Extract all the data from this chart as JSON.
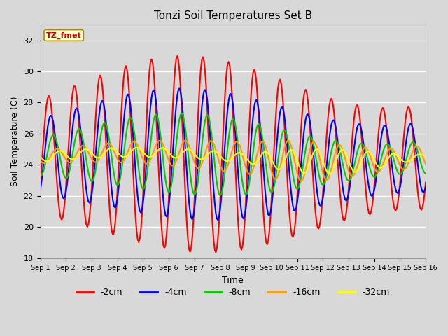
{
  "title": "Tonzi Soil Temperatures Set B",
  "xlabel": "Time",
  "ylabel": "Soil Temperature (C)",
  "ylim": [
    18,
    33
  ],
  "yticks": [
    18,
    20,
    22,
    24,
    26,
    28,
    30,
    32
  ],
  "x_labels": [
    "Sep 1",
    "Sep 2",
    "Sep 3",
    "Sep 4",
    "Sep 5",
    "Sep 6",
    "Sep 7",
    "Sep 8",
    "Sep 9",
    "Sep 10",
    "Sep 11",
    "Sep 12",
    "Sep 13",
    "Sep 14",
    "Sep 15",
    "Sep 16"
  ],
  "background_color": "#d8d8d8",
  "plot_bg_color": "#d8d8d8",
  "grid_color": "#ffffff",
  "legend_label": "TZ_fmet",
  "series": [
    {
      "label": "-2cm",
      "color": "#ff0000",
      "linewidth": 1.5
    },
    {
      "label": "-4cm",
      "color": "#0000ff",
      "linewidth": 1.5
    },
    {
      "label": "-8cm",
      "color": "#00cc00",
      "linewidth": 1.5
    },
    {
      "label": "-16cm",
      "color": "#ff9900",
      "linewidth": 1.5
    },
    {
      "label": "-32cm",
      "color": "#ffff00",
      "linewidth": 1.5
    }
  ],
  "figsize": [
    6.4,
    4.8
  ],
  "dpi": 100
}
